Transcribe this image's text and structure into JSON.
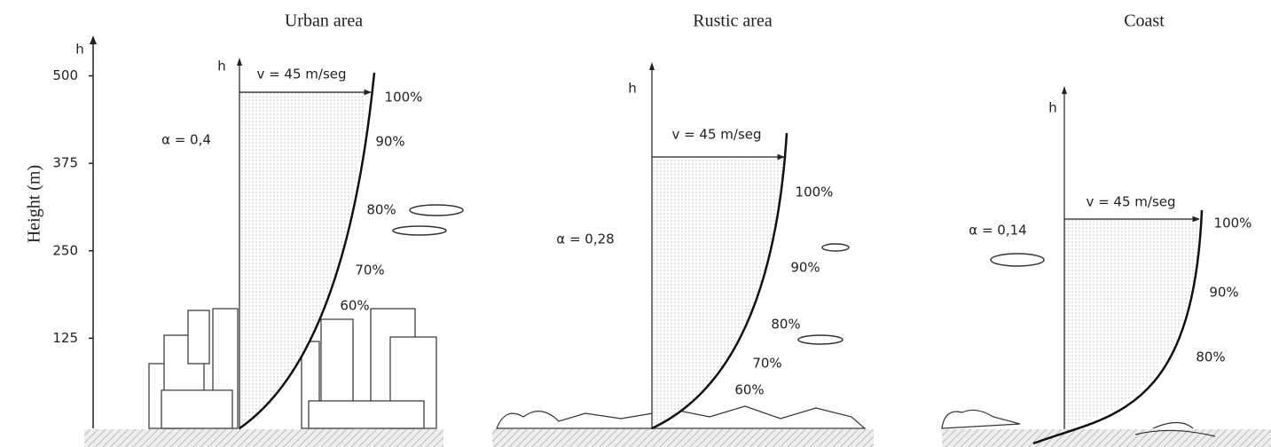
{
  "axis": {
    "label": "Height (m)",
    "h": "h",
    "ticks": [
      500,
      375,
      250,
      125
    ]
  },
  "panels": [
    {
      "title": "Urban area",
      "h": "h",
      "velocity": "v = 45 m/seg",
      "alpha": "α = 0,4",
      "levels": [
        "100%",
        "90%",
        "80%",
        "70%",
        "60%"
      ]
    },
    {
      "title": "Rustic area",
      "h": "h",
      "velocity": "v = 45 m/seg",
      "alpha": "α = 0,28",
      "levels": [
        "100%",
        "90%",
        "80%",
        "70%",
        "60%"
      ]
    },
    {
      "title": "Coast",
      "h": "h",
      "velocity": "v = 45 m/seg",
      "alpha": "α = 0,14",
      "levels": [
        "100%",
        "90%",
        "80%"
      ]
    }
  ]
}
